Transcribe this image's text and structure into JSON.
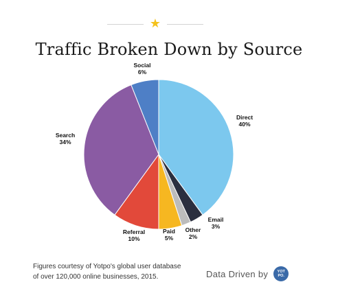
{
  "chart_data": {
    "type": "pie",
    "title": "Traffic Broken Down by Source",
    "slices": [
      {
        "name": "Direct",
        "value": 40,
        "label": "40%",
        "color": "#7cc8ee"
      },
      {
        "name": "Email",
        "value": 3,
        "label": "3%",
        "color": "#2b2f3f"
      },
      {
        "name": "Other",
        "value": 2,
        "label": "2%",
        "color": "#bcbcbc"
      },
      {
        "name": "Paid",
        "value": 5,
        "label": "5%",
        "color": "#f6b721"
      },
      {
        "name": "Referral",
        "value": 10,
        "label": "10%",
        "color": "#e2493a"
      },
      {
        "name": "Search",
        "value": 34,
        "label": "34%",
        "color": "#8a5ba3"
      },
      {
        "name": "Social",
        "value": 6,
        "label": "6%",
        "color": "#4e7fc6"
      }
    ]
  },
  "footer": {
    "note_line1": "Figures courtesy of Yotpo's global user database",
    "note_line2": "of over 120,000 online businesses, 2015.",
    "brand_text": "Data Driven by",
    "logo_text": "YOT PO."
  },
  "decor": {
    "star_glyph": "★",
    "star_color": "#f4c21b",
    "logo_color": "#3a6aa8"
  }
}
